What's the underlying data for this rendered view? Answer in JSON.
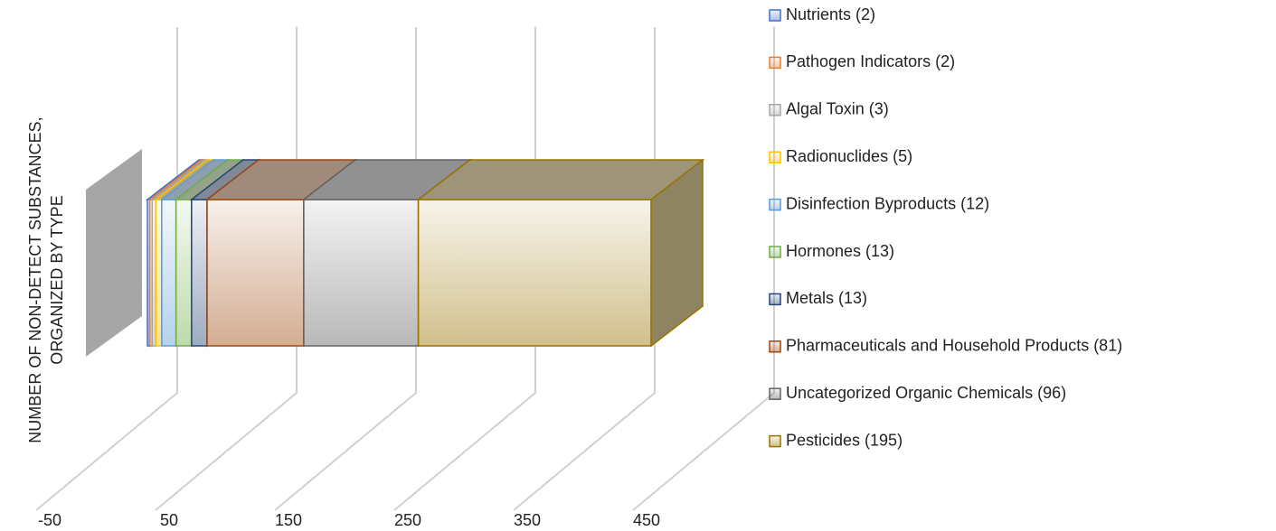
{
  "chart_data": {
    "type": "bar3d_stacked_horizontal",
    "y_label": [
      "NUMBER OF NON-DETECT SUBSTANCES,",
      "ORGANIZED BY TYPE"
    ],
    "xlim": [
      -50,
      450
    ],
    "xticks": [
      -50,
      50,
      150,
      250,
      350,
      450
    ],
    "grid": true,
    "legend": "right",
    "series": [
      {
        "name": "Nutrients (2)",
        "color": "#4472c4",
        "values": [
          2
        ]
      },
      {
        "name": "Pathogen Indicators (2)",
        "color": "#ed7d31",
        "values": [
          2
        ]
      },
      {
        "name": "Algal Toxin (3)",
        "color": "#a5a5a5",
        "values": [
          3
        ]
      },
      {
        "name": "Radionuclides (5)",
        "color": "#ffc000",
        "values": [
          5
        ]
      },
      {
        "name": "Disinfection Byproducts (12)",
        "color": "#5b9bd5",
        "values": [
          12
        ]
      },
      {
        "name": "Hormones (13)",
        "color": "#70ad47",
        "values": [
          13
        ]
      },
      {
        "name": "Metals (13)",
        "color": "#264478",
        "values": [
          13
        ]
      },
      {
        "name": "Pharmaceuticals and Household Products (81)",
        "color": "#9e480e",
        "values": [
          81
        ]
      },
      {
        "name": "Uncategorized Organic Chemicals (96)",
        "color": "#636363",
        "values": [
          96
        ]
      },
      {
        "name": "Pesticides (195)",
        "color": "#997300",
        "values": [
          195
        ]
      }
    ]
  }
}
